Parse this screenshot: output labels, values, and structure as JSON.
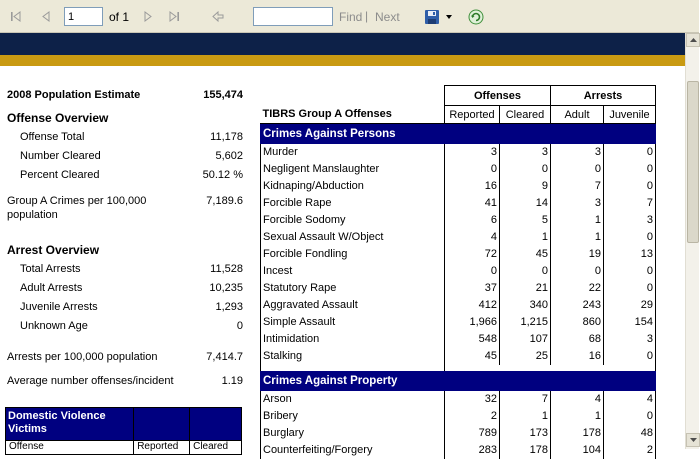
{
  "toolbar": {
    "page_value": "1",
    "of_label": "of 1",
    "find_label": "Find",
    "separator": "|",
    "next_label": "Next"
  },
  "stats": {
    "population_label": "2008 Population Estimate",
    "population_value": "155,474",
    "offense_overview_title": "Offense Overview",
    "offense_total_label": "Offense Total",
    "offense_total_value": "11,178",
    "number_cleared_label": "Number Cleared",
    "number_cleared_value": "5,602",
    "percent_cleared_label": "Percent Cleared",
    "percent_cleared_value": "50.12 %",
    "group_a_label_1": "Group A Crimes per 100,000",
    "group_a_label_2": "population",
    "group_a_value": "7,189.6",
    "arrest_overview_title": "Arrest Overview",
    "total_arrests_label": "Total Arrests",
    "total_arrests_value": "11,528",
    "adult_arrests_label": "Adult Arrests",
    "adult_arrests_value": "10,235",
    "juvenile_arrests_label": "Juvenile Arrests",
    "juvenile_arrests_value": "1,293",
    "unknown_age_label": "Unknown Age",
    "unknown_age_value": "0",
    "arrests_per_label": "Arrests per 100,000 population",
    "arrests_per_value": "7,414.7",
    "avg_offenses_label": "Average number offenses/incident",
    "avg_offenses_value": "1.19"
  },
  "dv": {
    "title_1": "Domestic Violence",
    "title_2": "Victims",
    "col_offense": "Offense",
    "col_reported": "Reported",
    "col_cleared": "Cleared"
  },
  "table": {
    "group_offenses": "Offenses",
    "group_arrests": "Arrests",
    "col_name": "TIBRS Group A Offenses",
    "col_reported": "Reported",
    "col_cleared": "Cleared",
    "col_adult": "Adult",
    "col_juvenile": "Juvenile",
    "persons_title": "Crimes Against Persons",
    "persons": [
      {
        "name": "Murder",
        "reported": "3",
        "cleared": "3",
        "adult": "3",
        "juvenile": "0"
      },
      {
        "name": "Negligent Manslaughter",
        "reported": "0",
        "cleared": "0",
        "adult": "0",
        "juvenile": "0"
      },
      {
        "name": "Kidnaping/Abduction",
        "reported": "16",
        "cleared": "9",
        "adult": "7",
        "juvenile": "0"
      },
      {
        "name": "Forcible Rape",
        "reported": "41",
        "cleared": "14",
        "adult": "3",
        "juvenile": "7"
      },
      {
        "name": "Forcible Sodomy",
        "reported": "6",
        "cleared": "5",
        "adult": "1",
        "juvenile": "3"
      },
      {
        "name": "Sexual Assault W/Object",
        "reported": "4",
        "cleared": "1",
        "adult": "1",
        "juvenile": "0"
      },
      {
        "name": "Forcible Fondling",
        "reported": "72",
        "cleared": "45",
        "adult": "19",
        "juvenile": "13"
      },
      {
        "name": "Incest",
        "reported": "0",
        "cleared": "0",
        "adult": "0",
        "juvenile": "0"
      },
      {
        "name": "Statutory Rape",
        "reported": "37",
        "cleared": "21",
        "adult": "22",
        "juvenile": "0"
      },
      {
        "name": "Aggravated Assault",
        "reported": "412",
        "cleared": "340",
        "adult": "243",
        "juvenile": "29"
      },
      {
        "name": "Simple Assault",
        "reported": "1,966",
        "cleared": "1,215",
        "adult": "860",
        "juvenile": "154"
      },
      {
        "name": "Intimidation",
        "reported": "548",
        "cleared": "107",
        "adult": "68",
        "juvenile": "3"
      },
      {
        "name": "Stalking",
        "reported": "45",
        "cleared": "25",
        "adult": "16",
        "juvenile": "0"
      }
    ],
    "property_title": "Crimes Against Property",
    "property": [
      {
        "name": "Arson",
        "reported": "32",
        "cleared": "7",
        "adult": "4",
        "juvenile": "4"
      },
      {
        "name": "Bribery",
        "reported": "2",
        "cleared": "1",
        "adult": "1",
        "juvenile": "0"
      },
      {
        "name": "Burglary",
        "reported": "789",
        "cleared": "173",
        "adult": "178",
        "juvenile": "48"
      },
      {
        "name": "Counterfeiting/Forgery",
        "reported": "283",
        "cleared": "178",
        "adult": "104",
        "juvenile": "2"
      }
    ]
  },
  "colors": {
    "banner_navy": "#0d2148",
    "banner_gold": "#c99a12",
    "header_navy": "#000080"
  }
}
